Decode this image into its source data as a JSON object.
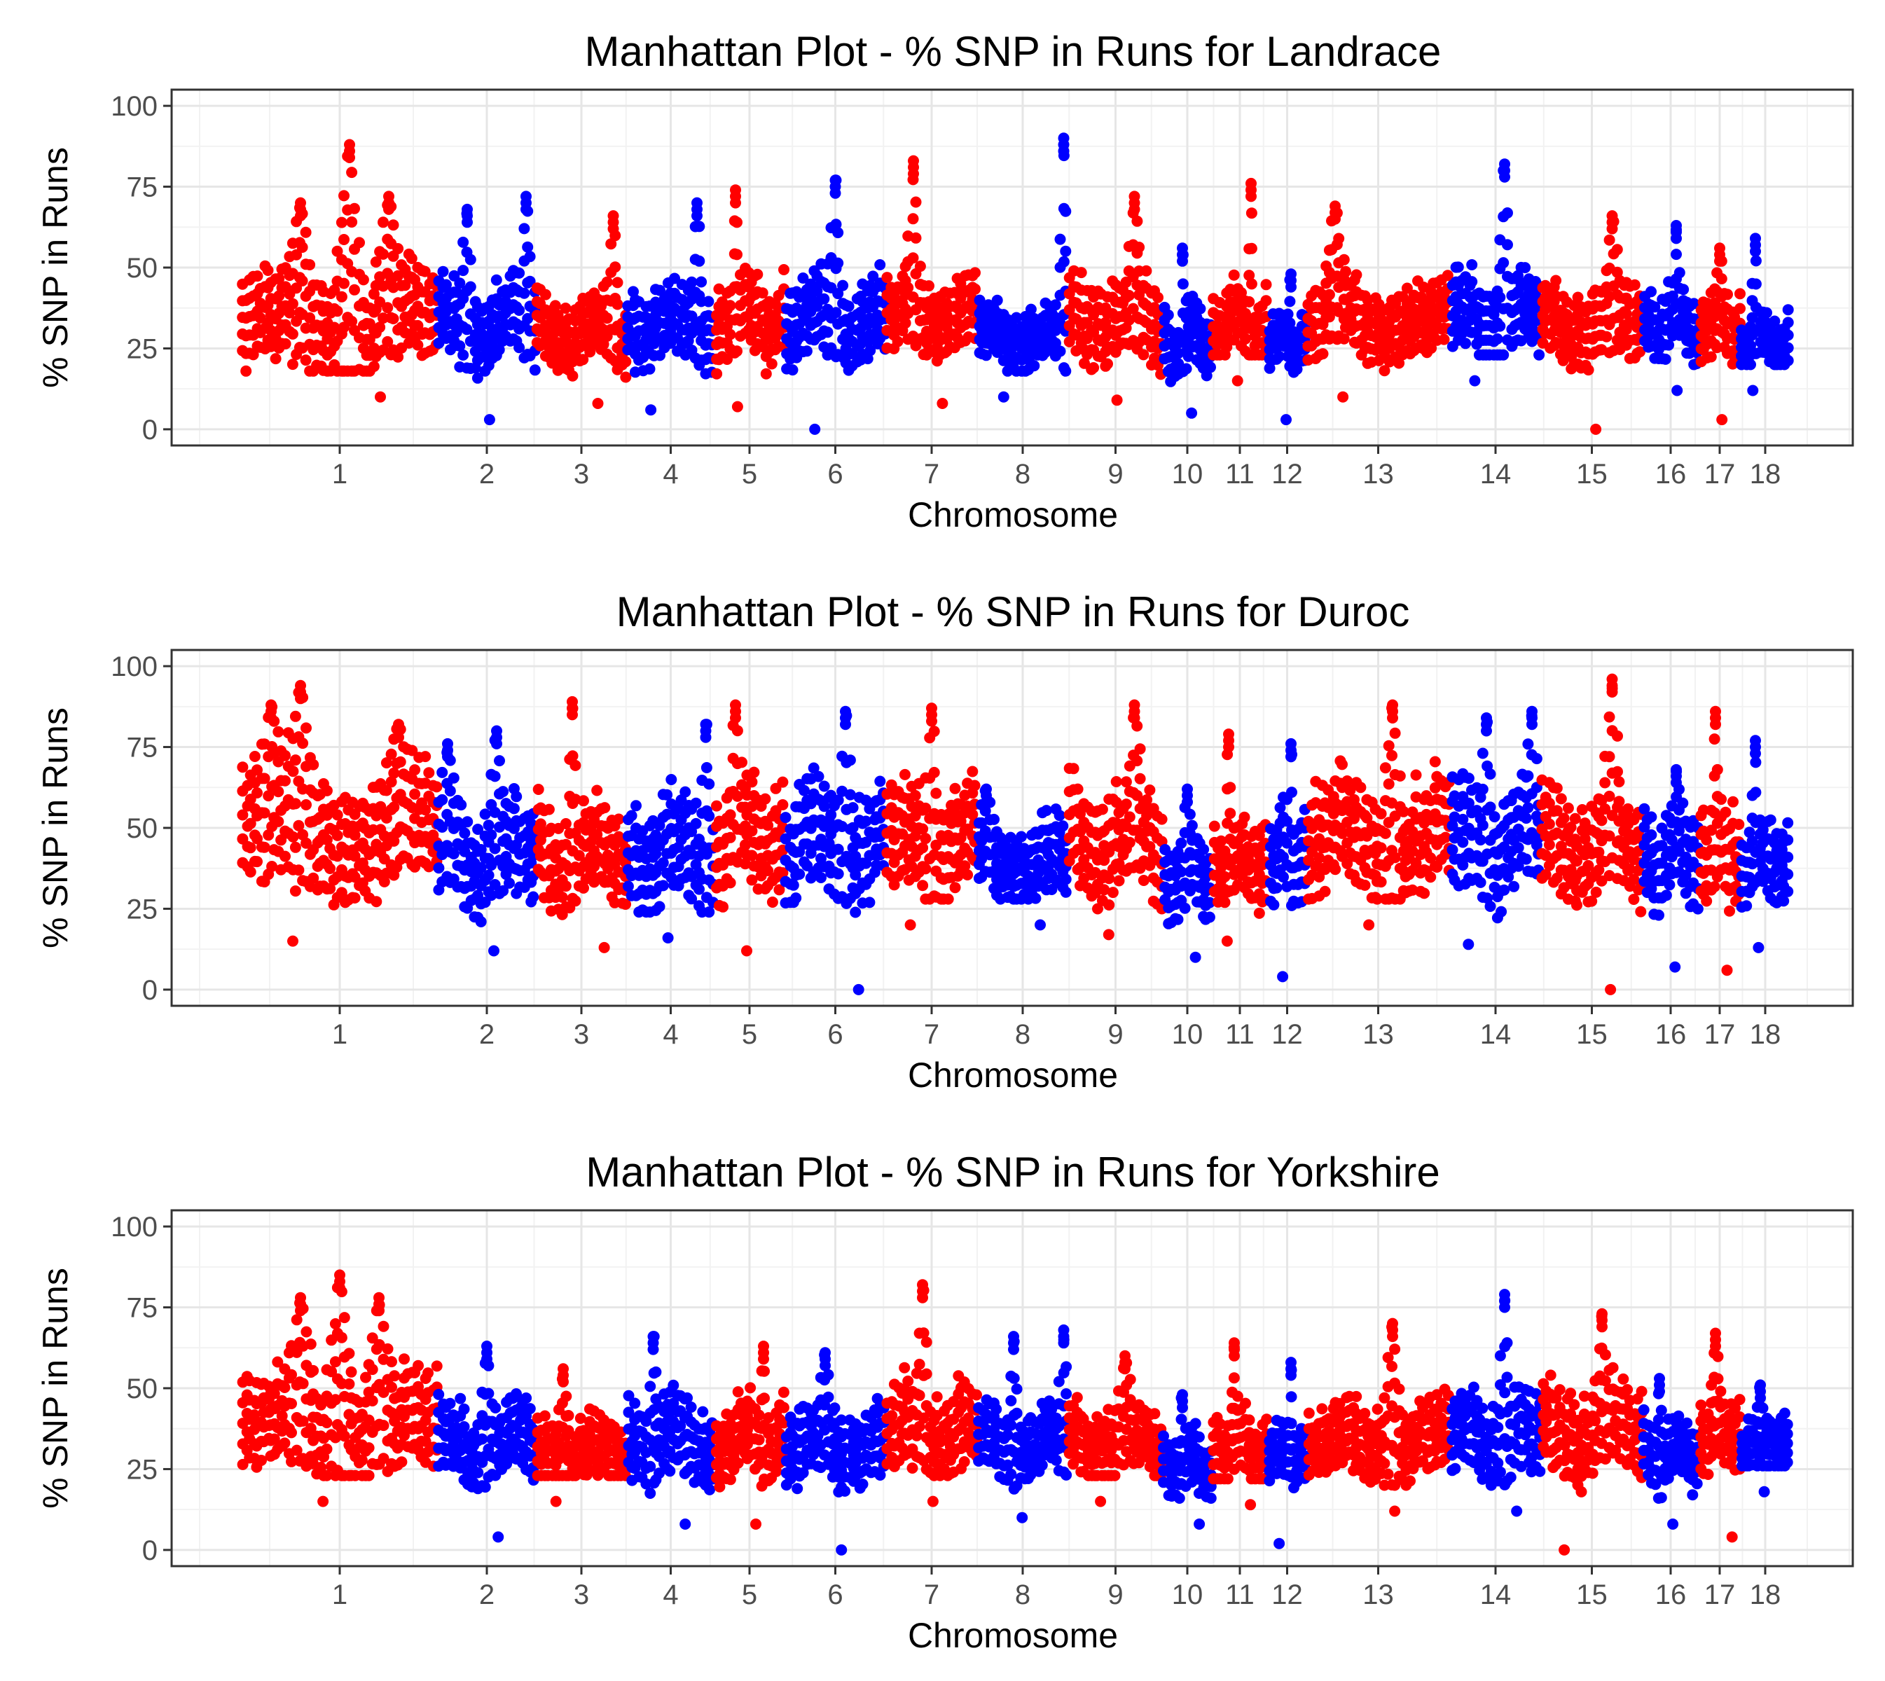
{
  "chart_data": [
    {
      "type": "scatter",
      "title": "Manhattan Plot - % SNP in Runs for  Landrace",
      "breed": "Landrace",
      "xlabel": "Chromosome",
      "ylabel": "% SNP in Runs",
      "ylim": [
        -5,
        105
      ],
      "yticks": [
        0,
        25,
        50,
        75,
        100
      ],
      "xticks": [
        "1",
        "2",
        "3",
        "4",
        "5",
        "6",
        "7",
        "8",
        "9",
        "10",
        "11",
        "12",
        "13",
        "14",
        "15",
        "16",
        "17",
        "18"
      ],
      "grid": true,
      "series_colors": [
        "#ff0000",
        "#0000ff"
      ],
      "chromosomes": [
        {
          "chr": "1",
          "base": 32,
          "amp": 14,
          "peaks": [
            [
              0.55,
              88
            ],
            [
              0.3,
              70
            ],
            [
              0.75,
              72
            ]
          ],
          "min": 10,
          "max": 90
        },
        {
          "chr": "2",
          "base": 32,
          "amp": 12,
          "peaks": [
            [
              0.3,
              68
            ],
            [
              0.9,
              72
            ]
          ],
          "min": 3,
          "max": 72
        },
        {
          "chr": "3",
          "base": 30,
          "amp": 10,
          "peaks": [
            [
              0.85,
              66
            ]
          ],
          "min": 8,
          "max": 66
        },
        {
          "chr": "4",
          "base": 33,
          "amp": 11,
          "peaks": [
            [
              0.8,
              70
            ]
          ],
          "min": 6,
          "max": 71
        },
        {
          "chr": "5",
          "base": 34,
          "amp": 12,
          "peaks": [
            [
              0.3,
              74
            ]
          ],
          "min": 7,
          "max": 74
        },
        {
          "chr": "6",
          "base": 33,
          "amp": 12,
          "peaks": [
            [
              0.5,
              77
            ]
          ],
          "min": 0,
          "max": 77
        },
        {
          "chr": "7",
          "base": 35,
          "amp": 11,
          "peaks": [
            [
              0.3,
              83
            ]
          ],
          "min": 8,
          "max": 84
        },
        {
          "chr": "8",
          "base": 28,
          "amp": 9,
          "peaks": [
            [
              0.95,
              90
            ]
          ],
          "min": 10,
          "max": 91
        },
        {
          "chr": "9",
          "base": 33,
          "amp": 12,
          "peaks": [
            [
              0.7,
              72
            ]
          ],
          "min": 9,
          "max": 76
        },
        {
          "chr": "10",
          "base": 27,
          "amp": 10,
          "peaks": [
            [
              0.4,
              56
            ]
          ],
          "min": 5,
          "max": 56
        },
        {
          "chr": "11",
          "base": 32,
          "amp": 11,
          "peaks": [
            [
              0.7,
              76
            ]
          ],
          "min": 15,
          "max": 76
        },
        {
          "chr": "12",
          "base": 28,
          "amp": 8,
          "peaks": [
            [
              0.6,
              48
            ]
          ],
          "min": 3,
          "max": 48
        },
        {
          "chr": "13",
          "base": 33,
          "amp": 11,
          "peaks": [
            [
              0.2,
              69
            ]
          ],
          "min": 10,
          "max": 69
        },
        {
          "chr": "14",
          "base": 35,
          "amp": 12,
          "peaks": [
            [
              0.6,
              82
            ]
          ],
          "min": 15,
          "max": 82
        },
        {
          "chr": "15",
          "base": 32,
          "amp": 11,
          "peaks": [
            [
              0.7,
              66
            ]
          ],
          "min": 0,
          "max": 66
        },
        {
          "chr": "16",
          "base": 33,
          "amp": 10,
          "peaks": [
            [
              0.6,
              63
            ]
          ],
          "min": 12,
          "max": 63
        },
        {
          "chr": "17",
          "base": 33,
          "amp": 10,
          "peaks": [
            [
              0.5,
              56
            ]
          ],
          "min": 3,
          "max": 56
        },
        {
          "chr": "18",
          "base": 27,
          "amp": 8,
          "peaks": [
            [
              0.3,
              59
            ]
          ],
          "min": 12,
          "max": 59
        }
      ]
    },
    {
      "type": "scatter",
      "title": "Manhattan Plot - % SNP in Runs for  Duroc",
      "breed": "Duroc",
      "xlabel": "Chromosome",
      "ylabel": "% SNP in Runs",
      "ylim": [
        -5,
        105
      ],
      "yticks": [
        0,
        25,
        50,
        75,
        100
      ],
      "xticks": [
        "1",
        "2",
        "3",
        "4",
        "5",
        "6",
        "7",
        "8",
        "9",
        "10",
        "11",
        "12",
        "13",
        "14",
        "15",
        "16",
        "17",
        "18"
      ],
      "grid": true,
      "series_colors": [
        "#ff0000",
        "#0000ff"
      ],
      "chromosomes": [
        {
          "chr": "1",
          "base": 48,
          "amp": 18,
          "peaks": [
            [
              0.3,
              94
            ],
            [
              0.15,
              88
            ],
            [
              0.8,
              82
            ]
          ],
          "min": 15,
          "max": 94
        },
        {
          "chr": "2",
          "base": 42,
          "amp": 15,
          "peaks": [
            [
              0.6,
              80
            ],
            [
              0.1,
              76
            ]
          ],
          "min": 12,
          "max": 80
        },
        {
          "chr": "3",
          "base": 42,
          "amp": 14,
          "peaks": [
            [
              0.4,
              89
            ]
          ],
          "min": 13,
          "max": 89
        },
        {
          "chr": "4",
          "base": 42,
          "amp": 15,
          "peaks": [
            [
              0.9,
              82
            ]
          ],
          "min": 16,
          "max": 82
        },
        {
          "chr": "5",
          "base": 48,
          "amp": 16,
          "peaks": [
            [
              0.3,
              88
            ]
          ],
          "min": 12,
          "max": 88
        },
        {
          "chr": "6",
          "base": 45,
          "amp": 16,
          "peaks": [
            [
              0.6,
              86
            ]
          ],
          "min": 0,
          "max": 86
        },
        {
          "chr": "7",
          "base": 46,
          "amp": 16,
          "peaks": [
            [
              0.5,
              87
            ]
          ],
          "min": 20,
          "max": 87
        },
        {
          "chr": "8",
          "base": 40,
          "amp": 12,
          "peaks": [
            [
              0.1,
              62
            ]
          ],
          "min": 20,
          "max": 62
        },
        {
          "chr": "9",
          "base": 46,
          "amp": 16,
          "peaks": [
            [
              0.7,
              88
            ]
          ],
          "min": 17,
          "max": 88
        },
        {
          "chr": "10",
          "base": 35,
          "amp": 12,
          "peaks": [
            [
              0.5,
              62
            ]
          ],
          "min": 10,
          "max": 62
        },
        {
          "chr": "11",
          "base": 40,
          "amp": 12,
          "peaks": [
            [
              0.3,
              79
            ]
          ],
          "min": 15,
          "max": 79
        },
        {
          "chr": "12",
          "base": 42,
          "amp": 14,
          "peaks": [
            [
              0.6,
              76
            ]
          ],
          "min": 4,
          "max": 76
        },
        {
          "chr": "13",
          "base": 46,
          "amp": 16,
          "peaks": [
            [
              0.6,
              88
            ]
          ],
          "min": 20,
          "max": 88
        },
        {
          "chr": "14",
          "base": 45,
          "amp": 16,
          "peaks": [
            [
              0.4,
              84
            ],
            [
              0.9,
              86
            ]
          ],
          "min": 14,
          "max": 86
        },
        {
          "chr": "15",
          "base": 44,
          "amp": 15,
          "peaks": [
            [
              0.7,
              96
            ]
          ],
          "min": 0,
          "max": 96
        },
        {
          "chr": "16",
          "base": 42,
          "amp": 13,
          "peaks": [
            [
              0.6,
              68
            ]
          ],
          "min": 7,
          "max": 68
        },
        {
          "chr": "17",
          "base": 44,
          "amp": 15,
          "peaks": [
            [
              0.4,
              86
            ]
          ],
          "min": 6,
          "max": 86
        },
        {
          "chr": "18",
          "base": 40,
          "amp": 12,
          "peaks": [
            [
              0.3,
              77
            ]
          ],
          "min": 13,
          "max": 77
        }
      ]
    },
    {
      "type": "scatter",
      "title": "Manhattan Plot - % SNP in Runs for  Yorkshire",
      "breed": "Yorkshire",
      "xlabel": "Chromosome",
      "ylabel": "% SNP in Runs",
      "ylim": [
        -5,
        105
      ],
      "yticks": [
        0,
        25,
        50,
        75,
        100
      ],
      "xticks": [
        "1",
        "2",
        "3",
        "4",
        "5",
        "6",
        "7",
        "8",
        "9",
        "10",
        "11",
        "12",
        "13",
        "14",
        "15",
        "16",
        "17",
        "18"
      ],
      "grid": true,
      "series_colors": [
        "#ff0000",
        "#0000ff"
      ],
      "chromosomes": [
        {
          "chr": "1",
          "base": 38,
          "amp": 14,
          "peaks": [
            [
              0.5,
              85
            ],
            [
              0.3,
              78
            ],
            [
              0.7,
              78
            ]
          ],
          "min": 15,
          "max": 85
        },
        {
          "chr": "2",
          "base": 33,
          "amp": 11,
          "peaks": [
            [
              0.5,
              63
            ]
          ],
          "min": 4,
          "max": 63
        },
        {
          "chr": "3",
          "base": 30,
          "amp": 10,
          "peaks": [
            [
              0.3,
              56
            ]
          ],
          "min": 15,
          "max": 56
        },
        {
          "chr": "4",
          "base": 34,
          "amp": 12,
          "peaks": [
            [
              0.3,
              66
            ]
          ],
          "min": 8,
          "max": 66
        },
        {
          "chr": "5",
          "base": 34,
          "amp": 11,
          "peaks": [
            [
              0.7,
              63
            ]
          ],
          "min": 8,
          "max": 63
        },
        {
          "chr": "6",
          "base": 32,
          "amp": 11,
          "peaks": [
            [
              0.4,
              61
            ]
          ],
          "min": 0,
          "max": 61
        },
        {
          "chr": "7",
          "base": 36,
          "amp": 13,
          "peaks": [
            [
              0.4,
              82
            ]
          ],
          "min": 15,
          "max": 82
        },
        {
          "chr": "8",
          "base": 32,
          "amp": 10,
          "peaks": [
            [
              0.4,
              66
            ],
            [
              0.95,
              68
            ]
          ],
          "min": 10,
          "max": 68
        },
        {
          "chr": "9",
          "base": 33,
          "amp": 11,
          "peaks": [
            [
              0.6,
              60
            ]
          ],
          "min": 15,
          "max": 60
        },
        {
          "chr": "10",
          "base": 27,
          "amp": 9,
          "peaks": [
            [
              0.4,
              48
            ]
          ],
          "min": 8,
          "max": 48
        },
        {
          "chr": "11",
          "base": 33,
          "amp": 11,
          "peaks": [
            [
              0.4,
              64
            ]
          ],
          "min": 14,
          "max": 64
        },
        {
          "chr": "12",
          "base": 30,
          "amp": 9,
          "peaks": [
            [
              0.6,
              58
            ]
          ],
          "min": 2,
          "max": 58
        },
        {
          "chr": "13",
          "base": 33,
          "amp": 11,
          "peaks": [
            [
              0.6,
              70
            ]
          ],
          "min": 12,
          "max": 70
        },
        {
          "chr": "14",
          "base": 34,
          "amp": 12,
          "peaks": [
            [
              0.6,
              79
            ]
          ],
          "min": 12,
          "max": 79
        },
        {
          "chr": "15",
          "base": 37,
          "amp": 13,
          "peaks": [
            [
              0.6,
              73
            ]
          ],
          "min": 0,
          "max": 73
        },
        {
          "chr": "16",
          "base": 30,
          "amp": 10,
          "peaks": [
            [
              0.3,
              53
            ]
          ],
          "min": 8,
          "max": 53
        },
        {
          "chr": "17",
          "base": 38,
          "amp": 13,
          "peaks": [
            [
              0.4,
              67
            ]
          ],
          "min": 4,
          "max": 67
        },
        {
          "chr": "18",
          "base": 32,
          "amp": 10,
          "peaks": [
            [
              0.4,
              51
            ]
          ],
          "min": 18,
          "max": 51
        }
      ]
    }
  ]
}
